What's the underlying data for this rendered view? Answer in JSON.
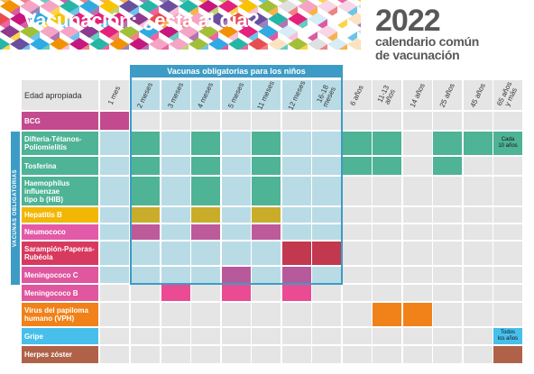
{
  "header": {
    "title": "Vacunación: ¿está al día?",
    "year": "2022",
    "subtitle_line1": "calendario común",
    "subtitle_line2": "de vacunación"
  },
  "banner": "Vacunas obligatorias para los niños",
  "side_label": "VACUNAS OBLIGATORIAS",
  "age_header": "Edad apropiada",
  "columns": [
    "1 mes",
    "2 meses",
    "3 meses",
    "4 meses",
    "5 meses",
    "11 meses",
    "12 meses",
    "16-18\nmeses",
    "6 años",
    "11-13\naños",
    "14 años",
    "25 años",
    "45 años",
    "65 años\ny más"
  ],
  "rows": [
    {
      "label": "BCG",
      "color": "#c34a8e"
    },
    {
      "label": "Difteria-Tétanos-\nPoliomielitis",
      "color": "#4fb396"
    },
    {
      "label": "Tosferina",
      "color": "#4fb396"
    },
    {
      "label": "Haemophilus\ninfluenzae\ntipo b (HIB)",
      "color": "#4fb396"
    },
    {
      "label": "Hepatitis B",
      "color": "#f2b705"
    },
    {
      "label": "Neumococo",
      "color": "#e25aa8"
    },
    {
      "label": "Sarampión-Paperas-\nRubéola",
      "color": "#d83a5f"
    },
    {
      "label": "Meningococo C",
      "color": "#e0569f"
    },
    {
      "label": "Meningococo B",
      "color": "#e0569f"
    },
    {
      "label": "Virus del papiloma\nhumano (VPH)",
      "color": "#f08219"
    },
    {
      "label": "Gripe",
      "color": "#47bfea"
    },
    {
      "label": "Herpes zóster",
      "color": "#b06248"
    }
  ],
  "notes": {
    "dtp_65": "Cada\n10 años",
    "flu_65": "Todos\nlos años"
  },
  "colors": {
    "grid_gray": "#e5e5e5",
    "child_blue": "#b9dbe6",
    "frame_blue": "#3d9cc5",
    "bcg": "#c34a8e",
    "dtp": "#4fb396",
    "hepb": "#c9ad2a",
    "pneumo": "#bd5a9a",
    "mmr": "#c2384e",
    "menc": "#b65a9c",
    "menb": "#ea4b93",
    "hpv": "#f08219",
    "flu": "#47bfea",
    "zoster": "#b06248"
  },
  "schedule": [
    {
      "row": 0,
      "col": 0,
      "color": "bcg"
    },
    {
      "row": 1,
      "col": 1,
      "color": "dtp"
    },
    {
      "row": 1,
      "col": 3,
      "color": "dtp"
    },
    {
      "row": 1,
      "col": 5,
      "color": "dtp"
    },
    {
      "row": 1,
      "col": 8,
      "color": "dtp"
    },
    {
      "row": 1,
      "col": 9,
      "color": "dtp"
    },
    {
      "row": 1,
      "col": 11,
      "color": "dtp"
    },
    {
      "row": 1,
      "col": 12,
      "color": "dtp"
    },
    {
      "row": 1,
      "col": 13,
      "color": "dtp"
    },
    {
      "row": 2,
      "col": 1,
      "color": "dtp"
    },
    {
      "row": 2,
      "col": 3,
      "color": "dtp"
    },
    {
      "row": 2,
      "col": 5,
      "color": "dtp"
    },
    {
      "row": 2,
      "col": 8,
      "color": "dtp"
    },
    {
      "row": 2,
      "col": 9,
      "color": "dtp"
    },
    {
      "row": 2,
      "col": 11,
      "color": "dtp"
    },
    {
      "row": 3,
      "col": 1,
      "color": "dtp"
    },
    {
      "row": 3,
      "col": 3,
      "color": "dtp"
    },
    {
      "row": 3,
      "col": 5,
      "color": "dtp"
    },
    {
      "row": 4,
      "col": 1,
      "color": "hepb"
    },
    {
      "row": 4,
      "col": 3,
      "color": "hepb"
    },
    {
      "row": 4,
      "col": 5,
      "color": "hepb"
    },
    {
      "row": 5,
      "col": 1,
      "color": "pneumo"
    },
    {
      "row": 5,
      "col": 3,
      "color": "pneumo"
    },
    {
      "row": 5,
      "col": 5,
      "color": "pneumo"
    },
    {
      "row": 6,
      "col": 6,
      "color": "mmr"
    },
    {
      "row": 6,
      "col": 7,
      "color": "mmr"
    },
    {
      "row": 7,
      "col": 4,
      "color": "menc"
    },
    {
      "row": 7,
      "col": 6,
      "color": "menc"
    },
    {
      "row": 8,
      "col": 2,
      "color": "menb"
    },
    {
      "row": 8,
      "col": 4,
      "color": "menb"
    },
    {
      "row": 8,
      "col": 6,
      "color": "menb"
    },
    {
      "row": 9,
      "col": 9,
      "color": "hpv"
    },
    {
      "row": 9,
      "col": 10,
      "color": "hpv"
    },
    {
      "row": 10,
      "col": 13,
      "color": "flu"
    },
    {
      "row": 11,
      "col": 13,
      "color": "zoster"
    }
  ]
}
